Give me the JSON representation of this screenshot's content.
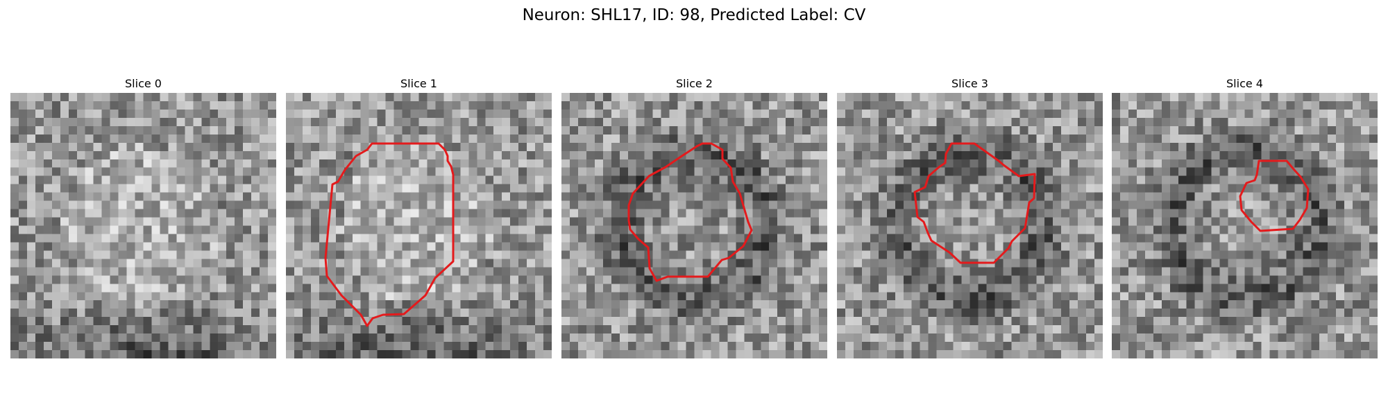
{
  "figure": {
    "title": "Neuron: SHL17, ID: 98, Predicted Label: CV"
  },
  "colors": {
    "contour": "#e41a1c",
    "background": "#ffffff"
  },
  "panels": [
    {
      "title": "Slice 0",
      "contour": false,
      "image": "grayscale-noise-patch",
      "dark_region": "bottom"
    },
    {
      "title": "Slice 1",
      "contour": true,
      "image": "grayscale-noise-patch",
      "dark_region": "bottom"
    },
    {
      "title": "Slice 2",
      "contour": true,
      "image": "grayscale-noise-patch",
      "dark_region": "ring"
    },
    {
      "title": "Slice 3",
      "contour": true,
      "image": "grayscale-noise-patch",
      "dark_region": "ring"
    },
    {
      "title": "Slice 4",
      "contour": true,
      "image": "grayscale-noise-patch",
      "dark_region": "ring"
    }
  ]
}
